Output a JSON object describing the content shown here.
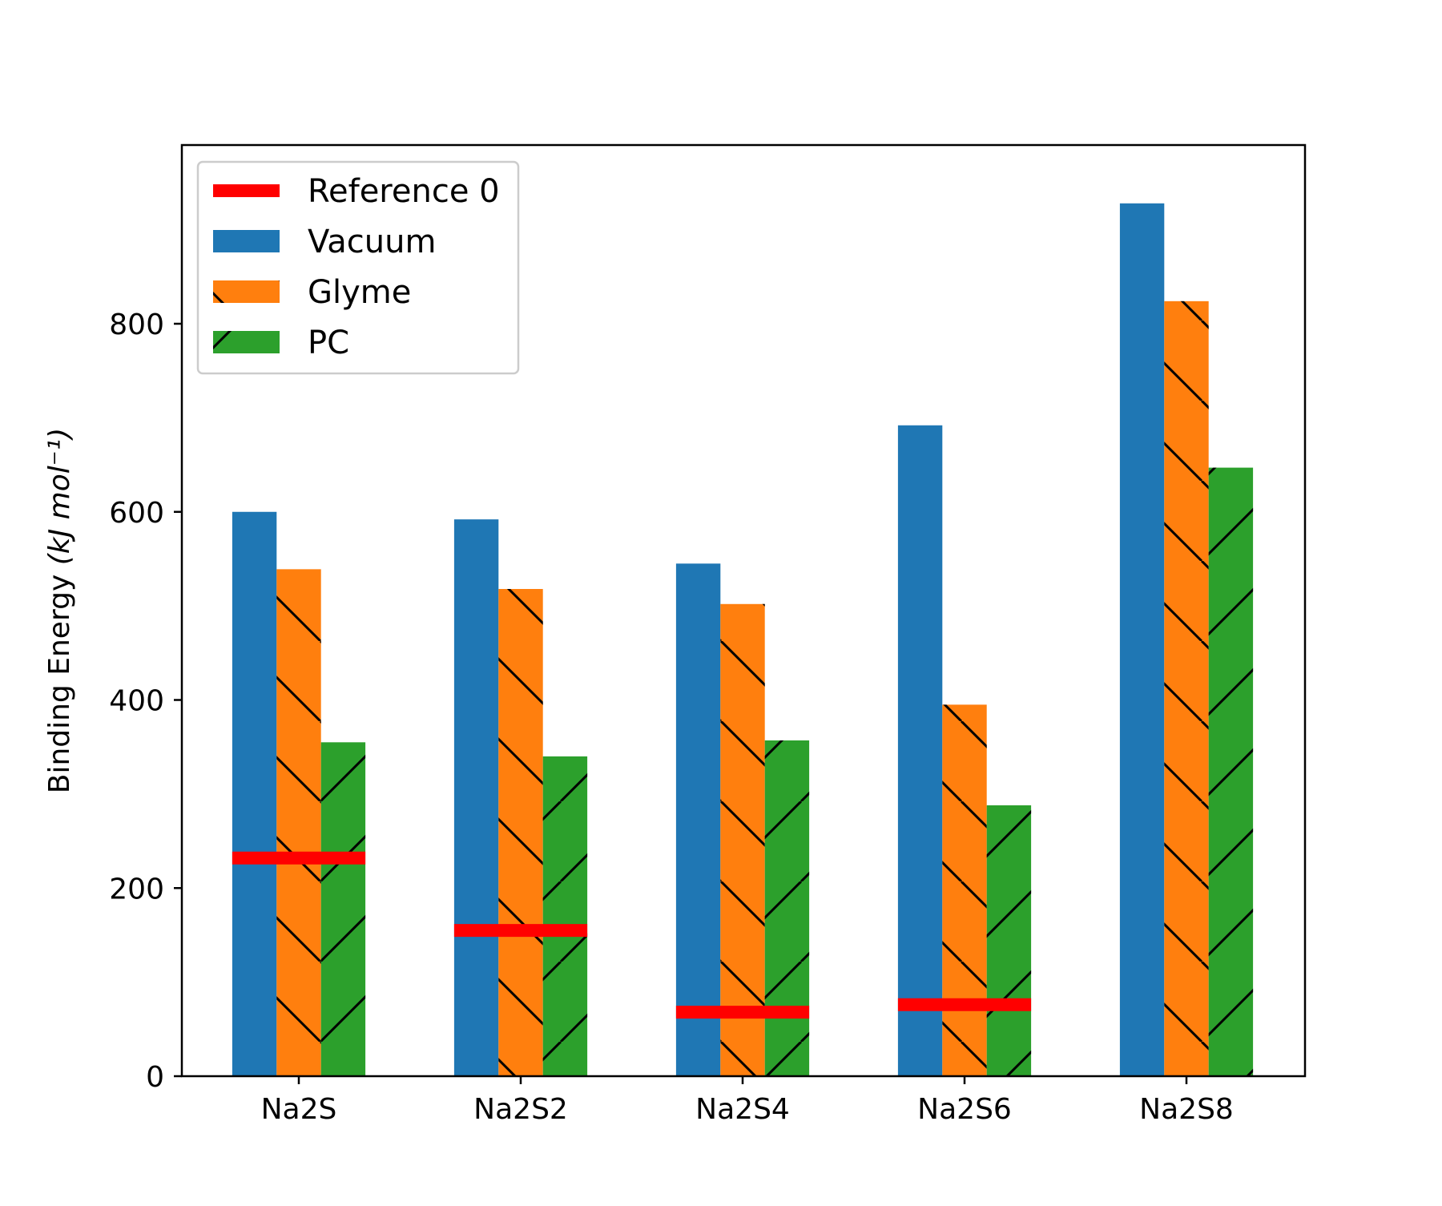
{
  "chart_data": {
    "type": "bar",
    "title": "",
    "xlabel": "",
    "ylabel": "Binding Energy",
    "ylabel_unit": "(kJ mol⁻¹)",
    "categories": [
      "Na2S",
      "Na2S2",
      "Na2S4",
      "Na2S6",
      "Na2S8"
    ],
    "series": [
      {
        "name": "Vacuum",
        "color": "#1f77b4",
        "hatch": "none",
        "values": [
          600,
          592,
          545,
          692,
          928
        ]
      },
      {
        "name": "Glyme",
        "color": "#ff7f0e",
        "hatch": "backslash",
        "values": [
          539,
          518,
          502,
          395,
          824
        ]
      },
      {
        "name": "PC",
        "color": "#2ca02c",
        "hatch": "slash",
        "values": [
          355,
          340,
          357,
          288,
          647
        ]
      }
    ],
    "reference": {
      "name": "Reference 0",
      "color": "#ff0000",
      "values": [
        232,
        155,
        68,
        76,
        null
      ]
    },
    "ylim": [
      0,
      990
    ],
    "yticks": [
      "0",
      "200",
      "400",
      "600",
      "800"
    ],
    "ytick_values": [
      0,
      200,
      400,
      600,
      800
    ],
    "grid": false,
    "legend_position": "upper-left"
  }
}
